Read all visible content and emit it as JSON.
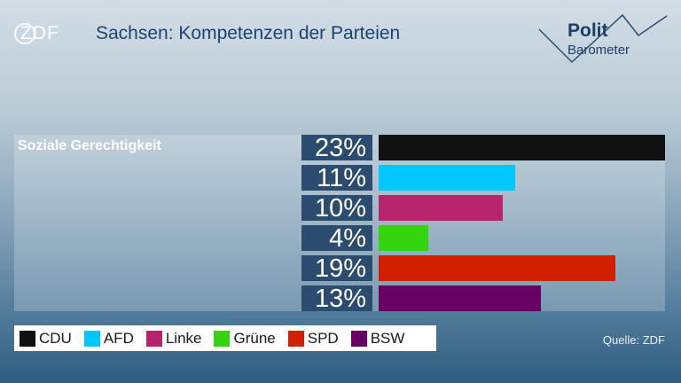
{
  "header": {
    "logo_text": "ZDF",
    "brand_line1": "Polit",
    "brand_line2": "Barometer"
  },
  "chart_data": {
    "type": "bar",
    "orientation": "horizontal",
    "title": "Sachsen: Kompetenzen der Parteien",
    "categories": [
      "Soziale Gerechtigkeit"
    ],
    "series": [
      {
        "name": "CDU",
        "values": [
          23
        ],
        "color": "#111111"
      },
      {
        "name": "AFD",
        "values": [
          11
        ],
        "color": "#00c8ff"
      },
      {
        "name": "Linke",
        "values": [
          10
        ],
        "color": "#b8246b"
      },
      {
        "name": "Grüne",
        "values": [
          4
        ],
        "color": "#34d40e"
      },
      {
        "name": "SPD",
        "values": [
          19
        ],
        "color": "#d21f00"
      },
      {
        "name": "BSW",
        "values": [
          13
        ],
        "color": "#690064"
      }
    ],
    "value_suffix": "%",
    "xlim": [
      0,
      23
    ],
    "grid": false,
    "legend_position": "bottom-left"
  },
  "source": "Quelle: ZDF",
  "colors": {
    "title": "#1c4470",
    "value_box": "#2b4c6f",
    "background_top": "#d3dde5",
    "background_bottom": "#2f5c7f"
  }
}
